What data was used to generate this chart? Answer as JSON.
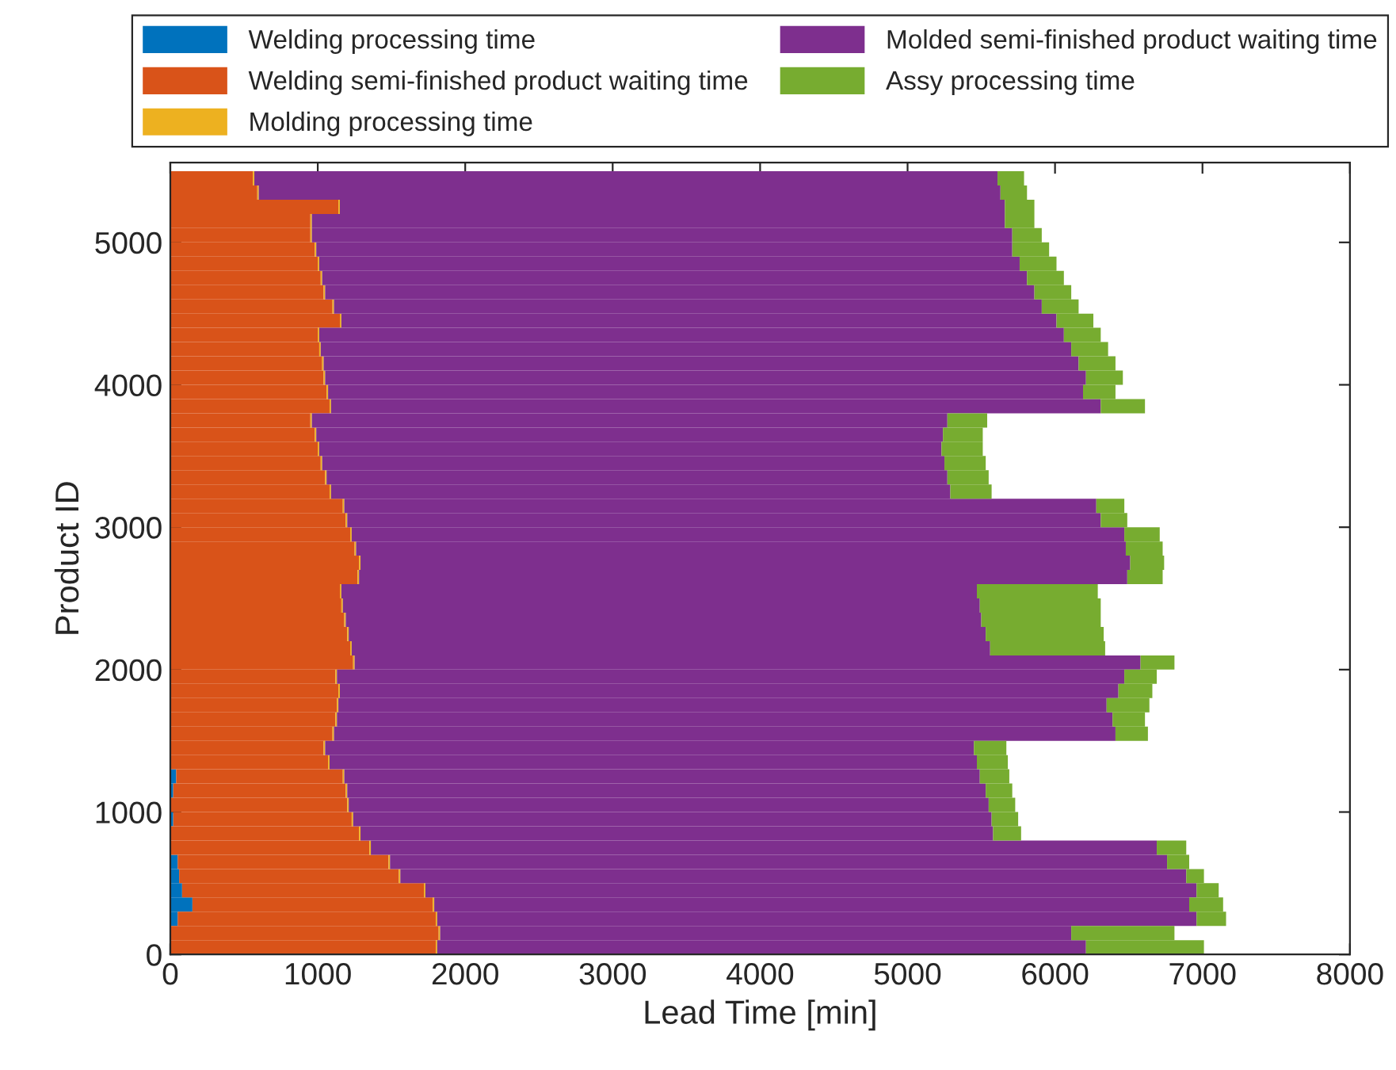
{
  "chart_data": {
    "type": "bar",
    "orientation": "horizontal",
    "stacked": true,
    "xlabel": "Lead Time [min]",
    "ylabel": "Product ID",
    "x": [
      50,
      150,
      250,
      350,
      450,
      550,
      650,
      750,
      850,
      950,
      1050,
      1150,
      1250,
      1350,
      1450,
      1550,
      1650,
      1750,
      1850,
      1950,
      2050,
      2150,
      2250,
      2350,
      2450,
      2550,
      2650,
      2750,
      2850,
      2950,
      3050,
      3150,
      3250,
      3350,
      3450,
      3550,
      3650,
      3750,
      3850,
      3950,
      4050,
      4150,
      4250,
      4350,
      4450,
      4550,
      4650,
      4750,
      4850,
      4950,
      5050,
      5150,
      5250,
      5350,
      5450
    ],
    "xlim": [
      0,
      8000
    ],
    "xticks": [
      0,
      1000,
      2000,
      3000,
      4000,
      5000,
      6000,
      7000,
      8000
    ],
    "ylim": [
      0,
      5560
    ],
    "yticks": [
      0,
      1000,
      2000,
      3000,
      4000,
      5000
    ],
    "grid": false,
    "legend": "top",
    "series": [
      {
        "name": "Welding processing time",
        "color": "#0072bd",
        "values": [
          0,
          0,
          50,
          150,
          80,
          60,
          50,
          0,
          0,
          20,
          0,
          20,
          40,
          0,
          0,
          0,
          0,
          0,
          0,
          0,
          0,
          0,
          0,
          0,
          0,
          0,
          0,
          0,
          0,
          0,
          0,
          0,
          0,
          0,
          0,
          0,
          0,
          0,
          0,
          0,
          0,
          0,
          0,
          0,
          0,
          0,
          0,
          0,
          0,
          0,
          0,
          0,
          0,
          0,
          0
        ]
      },
      {
        "name": "Welding semi-finished product waiting time",
        "color": "#d95319",
        "values": [
          1800,
          1820,
          1750,
          1630,
          1640,
          1490,
          1430,
          1350,
          1280,
          1210,
          1200,
          1170,
          1130,
          1070,
          1040,
          1100,
          1120,
          1130,
          1140,
          1120,
          1240,
          1220,
          1200,
          1180,
          1160,
          1150,
          1270,
          1280,
          1250,
          1220,
          1190,
          1170,
          1080,
          1050,
          1020,
          1000,
          980,
          950,
          1080,
          1060,
          1040,
          1030,
          1010,
          1000,
          1150,
          1100,
          1040,
          1020,
          1000,
          980,
          950,
          950,
          1140,
          590,
          560
        ]
      },
      {
        "name": "Molding processing time",
        "color": "#edb120",
        "values": [
          10,
          10,
          10,
          10,
          10,
          10,
          10,
          10,
          10,
          10,
          10,
          10,
          10,
          10,
          10,
          10,
          10,
          10,
          10,
          10,
          10,
          10,
          10,
          10,
          10,
          10,
          10,
          10,
          10,
          10,
          10,
          10,
          10,
          10,
          10,
          10,
          10,
          10,
          10,
          10,
          10,
          10,
          10,
          10,
          10,
          10,
          10,
          10,
          10,
          10,
          10,
          10,
          10,
          10,
          10
        ]
      },
      {
        "name": "Molded semi-finished product waiting time",
        "color": "#7e2f8e",
        "values": [
          4400,
          4280,
          5150,
          5120,
          5230,
          5330,
          5270,
          5330,
          4290,
          4330,
          4340,
          4330,
          4310,
          4390,
          4400,
          5300,
          5260,
          5210,
          5280,
          5340,
          5330,
          4330,
          4320,
          4310,
          4320,
          4310,
          5210,
          5220,
          5220,
          5240,
          5110,
          5100,
          4200,
          4210,
          4220,
          4220,
          4250,
          4310,
          5220,
          5120,
          5160,
          5120,
          5090,
          5050,
          4850,
          4800,
          4810,
          4780,
          4750,
          4720,
          4750,
          4700,
          4510,
          5030,
          5040
        ]
      },
      {
        "name": "Assy processing time",
        "color": "#77ac30",
        "values": [
          800,
          700,
          200,
          230,
          150,
          120,
          150,
          200,
          190,
          180,
          180,
          180,
          200,
          210,
          220,
          220,
          220,
          290,
          230,
          220,
          230,
          780,
          800,
          810,
          820,
          820,
          240,
          230,
          250,
          240,
          180,
          190,
          280,
          280,
          280,
          280,
          270,
          270,
          300,
          220,
          250,
          250,
          250,
          250,
          250,
          250,
          250,
          250,
          250,
          250,
          200,
          200,
          200,
          180,
          180
        ]
      }
    ]
  }
}
